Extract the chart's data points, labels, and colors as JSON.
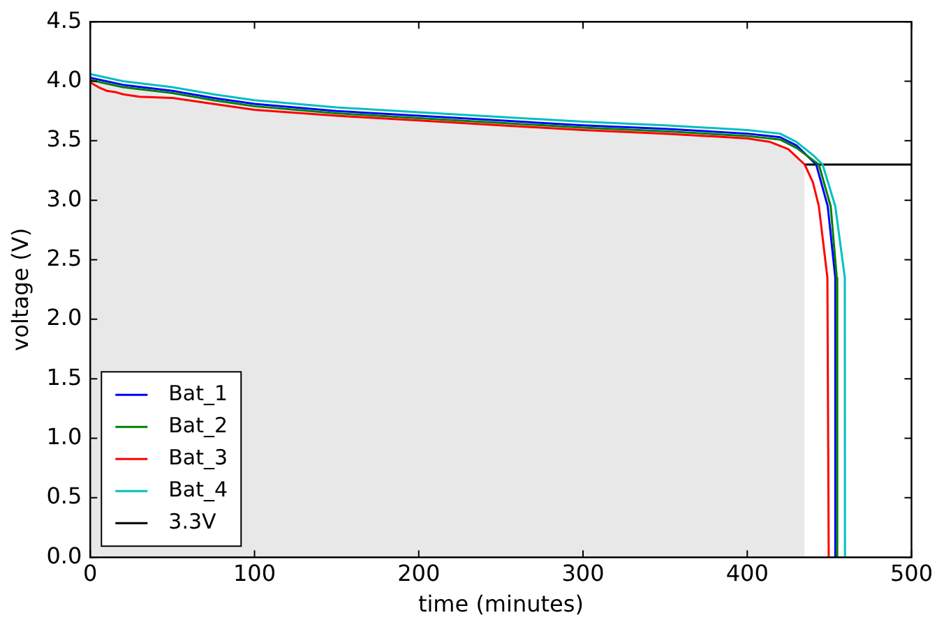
{
  "chart_data": {
    "type": "line",
    "xlabel": "time (minutes)",
    "ylabel": "voltage (V)",
    "xlim": [
      0,
      500
    ],
    "xticks": [
      0,
      100,
      200,
      300,
      400,
      500
    ],
    "ylim": [
      0,
      4.5
    ],
    "yticks": [
      {
        "value": 0,
        "label": "0.0"
      },
      {
        "value": 0.5,
        "label": "0.5"
      },
      {
        "value": 1,
        "label": "1.0"
      },
      {
        "value": 1.5,
        "label": "1.5"
      },
      {
        "value": 2,
        "label": "2.0"
      },
      {
        "value": 2.5,
        "label": "2.5"
      },
      {
        "value": 3,
        "label": "3.0"
      },
      {
        "value": 3.5,
        "label": "3.5"
      },
      {
        "value": 4,
        "label": "4.0"
      },
      {
        "value": 4.5,
        "label": "4.5"
      }
    ],
    "grid": false,
    "legend": "bottom left",
    "ref_lines": [
      {
        "axis": "y",
        "value": 3.3,
        "label": "3.3V",
        "color": "#000000"
      }
    ],
    "series": [
      {
        "type": "area",
        "color": "#e8e8e8",
        "x": [
          0,
          50,
          100,
          200,
          300,
          400,
          420,
          430,
          435,
          435
        ],
        "values": [
          4.0,
          3.88,
          3.78,
          3.68,
          3.61,
          3.53,
          3.47,
          3.38,
          3.3,
          0
        ]
      },
      {
        "name": "Bat_1",
        "color": "#0000ff",
        "x": [
          0,
          20,
          50,
          75,
          100,
          150,
          200,
          250,
          300,
          350,
          400,
          420,
          430,
          442,
          449,
          453.6,
          453.6
        ],
        "values": [
          4.03,
          3.97,
          3.92,
          3.86,
          3.81,
          3.75,
          3.71,
          3.67,
          3.63,
          3.6,
          3.56,
          3.53,
          3.46,
          3.3,
          2.95,
          2.35,
          0
        ]
      },
      {
        "name": "Bat_2",
        "color": "#008000",
        "x": [
          0,
          20,
          50,
          75,
          100,
          150,
          200,
          250,
          300,
          350,
          400,
          420,
          430,
          443.6,
          450.8,
          454.5,
          454.8
        ],
        "values": [
          4.01,
          3.95,
          3.9,
          3.84,
          3.79,
          3.73,
          3.69,
          3.65,
          3.61,
          3.58,
          3.54,
          3.51,
          3.44,
          3.3,
          2.95,
          2.35,
          0
        ]
      },
      {
        "name": "Bat_3",
        "color": "#ff0000",
        "x": [
          0,
          5,
          10,
          15,
          20,
          30,
          50,
          75,
          100,
          150,
          200,
          250,
          300,
          350,
          400,
          414,
          425,
          435,
          440,
          443.6,
          448.8,
          449.6
        ],
        "values": [
          3.99,
          3.95,
          3.92,
          3.91,
          3.89,
          3.87,
          3.86,
          3.81,
          3.76,
          3.71,
          3.67,
          3.63,
          3.59,
          3.56,
          3.52,
          3.49,
          3.43,
          3.3,
          3.15,
          2.95,
          2.35,
          0
        ]
      },
      {
        "name": "Bat_4",
        "color": "#00bfbf",
        "x": [
          0,
          20,
          50,
          75,
          100,
          150,
          200,
          250,
          300,
          350,
          400,
          420,
          430,
          440,
          445.9,
          453.6,
          459.4,
          459.5
        ],
        "values": [
          4.06,
          4.0,
          3.95,
          3.89,
          3.84,
          3.78,
          3.74,
          3.7,
          3.66,
          3.63,
          3.59,
          3.56,
          3.49,
          3.38,
          3.3,
          2.95,
          2.35,
          0
        ]
      }
    ]
  }
}
